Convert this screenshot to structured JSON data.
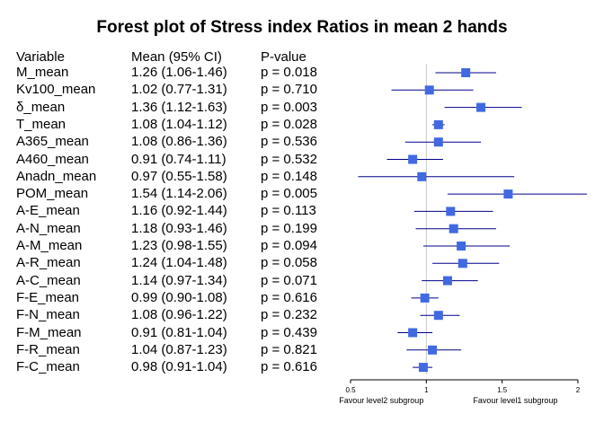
{
  "chart_data": {
    "type": "forest",
    "title": "Forest plot of Stress index Ratios in mean 2 hands",
    "columns": {
      "variable": "Variable",
      "mean": "Mean (95% CI)",
      "pvalue": "P-value"
    },
    "xlim": [
      0.5,
      2
    ],
    "reference_line": 1,
    "xticks": [
      "0.5",
      "1",
      "1.5",
      "2"
    ],
    "favour_left": "Favour level2 subgroup",
    "favour_right": "Favour level1 subgroup",
    "marker_color": "#4169e1",
    "ci_color": "#00008b",
    "rows": [
      {
        "name": "M_mean",
        "mean": 1.26,
        "lower": 1.06,
        "upper": 1.46,
        "label": "1.26 (1.06-1.46)",
        "p": "p = 0.018"
      },
      {
        "name": "Kv100_mean",
        "mean": 1.02,
        "lower": 0.77,
        "upper": 1.31,
        "label": "1.02 (0.77-1.31)",
        "p": "p = 0.710"
      },
      {
        "name": "δ_mean",
        "mean": 1.36,
        "lower": 1.12,
        "upper": 1.63,
        "label": "1.36 (1.12-1.63)",
        "p": "p = 0.003"
      },
      {
        "name": "T_mean",
        "mean": 1.08,
        "lower": 1.04,
        "upper": 1.12,
        "label": "1.08 (1.04-1.12)",
        "p": "p = 0.028"
      },
      {
        "name": "A365_mean",
        "mean": 1.08,
        "lower": 0.86,
        "upper": 1.36,
        "label": "1.08 (0.86-1.36)",
        "p": "p = 0.536"
      },
      {
        "name": "A460_mean",
        "mean": 0.91,
        "lower": 0.74,
        "upper": 1.11,
        "label": "0.91 (0.74-1.11)",
        "p": "p = 0.532"
      },
      {
        "name": "Anadn_mean",
        "mean": 0.97,
        "lower": 0.55,
        "upper": 1.58,
        "label": "0.97 (0.55-1.58)",
        "p": "p = 0.148"
      },
      {
        "name": "POM_mean",
        "mean": 1.54,
        "lower": 1.14,
        "upper": 2.06,
        "label": "1.54 (1.14-2.06)",
        "p": "p = 0.005"
      },
      {
        "name": "A-E_mean",
        "mean": 1.16,
        "lower": 0.92,
        "upper": 1.44,
        "label": "1.16 (0.92-1.44)",
        "p": "p = 0.113"
      },
      {
        "name": "A-N_mean",
        "mean": 1.18,
        "lower": 0.93,
        "upper": 1.46,
        "label": "1.18 (0.93-1.46)",
        "p": "p = 0.199"
      },
      {
        "name": "A-M_mean",
        "mean": 1.23,
        "lower": 0.98,
        "upper": 1.55,
        "label": "1.23 (0.98-1.55)",
        "p": "p = 0.094"
      },
      {
        "name": "A-R_mean",
        "mean": 1.24,
        "lower": 1.04,
        "upper": 1.48,
        "label": "1.24 (1.04-1.48)",
        "p": "p = 0.058"
      },
      {
        "name": "A-C_mean",
        "mean": 1.14,
        "lower": 0.97,
        "upper": 1.34,
        "label": "1.14 (0.97-1.34)",
        "p": "p = 0.071"
      },
      {
        "name": "F-E_mean",
        "mean": 0.99,
        "lower": 0.9,
        "upper": 1.08,
        "label": "0.99 (0.90-1.08)",
        "p": "p = 0.616"
      },
      {
        "name": "F-N_mean",
        "mean": 1.08,
        "lower": 0.96,
        "upper": 1.22,
        "label": "1.08 (0.96-1.22)",
        "p": "p = 0.232"
      },
      {
        "name": "F-M_mean",
        "mean": 0.91,
        "lower": 0.81,
        "upper": 1.04,
        "label": "0.91 (0.81-1.04)",
        "p": "p = 0.439"
      },
      {
        "name": "F-R_mean",
        "mean": 1.04,
        "lower": 0.87,
        "upper": 1.23,
        "label": "1.04 (0.87-1.23)",
        "p": "p = 0.821"
      },
      {
        "name": "F-C_mean",
        "mean": 0.98,
        "lower": 0.91,
        "upper": 1.04,
        "label": "0.98 (0.91-1.04)",
        "p": "p = 0.616"
      }
    ]
  }
}
